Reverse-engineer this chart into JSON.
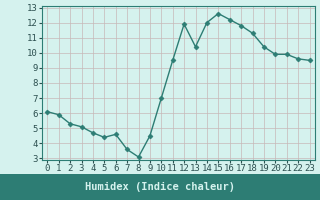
{
  "x": [
    0,
    1,
    2,
    3,
    4,
    5,
    6,
    7,
    8,
    9,
    10,
    11,
    12,
    13,
    14,
    15,
    16,
    17,
    18,
    19,
    20,
    21,
    22,
    23
  ],
  "y": [
    6.1,
    5.9,
    5.3,
    5.1,
    4.7,
    4.4,
    4.6,
    3.6,
    3.1,
    4.5,
    7.0,
    9.5,
    11.9,
    10.4,
    12.0,
    12.6,
    12.2,
    11.8,
    11.3,
    10.4,
    9.9,
    9.9,
    9.6,
    9.5
  ],
  "line_color": "#2d7d74",
  "marker": "D",
  "marker_size": 2.5,
  "line_width": 1.0,
  "bg_color": "#d5f2ee",
  "grid_color_h": "#c8b8b8",
  "grid_color_v": "#c8b8b8",
  "xlabel": "Humidex (Indice chaleur)",
  "xlabel_color": "#2d5050",
  "xlabel_fontsize": 7.5,
  "tick_color": "#2d5050",
  "tick_fontsize": 6.5,
  "ylim": [
    3,
    13
  ],
  "xlim": [
    -0.5,
    23.5
  ],
  "yticks": [
    3,
    4,
    5,
    6,
    7,
    8,
    9,
    10,
    11,
    12,
    13
  ],
  "xticks": [
    0,
    1,
    2,
    3,
    4,
    5,
    6,
    7,
    8,
    9,
    10,
    11,
    12,
    13,
    14,
    15,
    16,
    17,
    18,
    19,
    20,
    21,
    22,
    23
  ],
  "spine_color": "#2d7d74",
  "bottom_bar_color": "#2d7d74",
  "bottom_bar_height": 0.13
}
